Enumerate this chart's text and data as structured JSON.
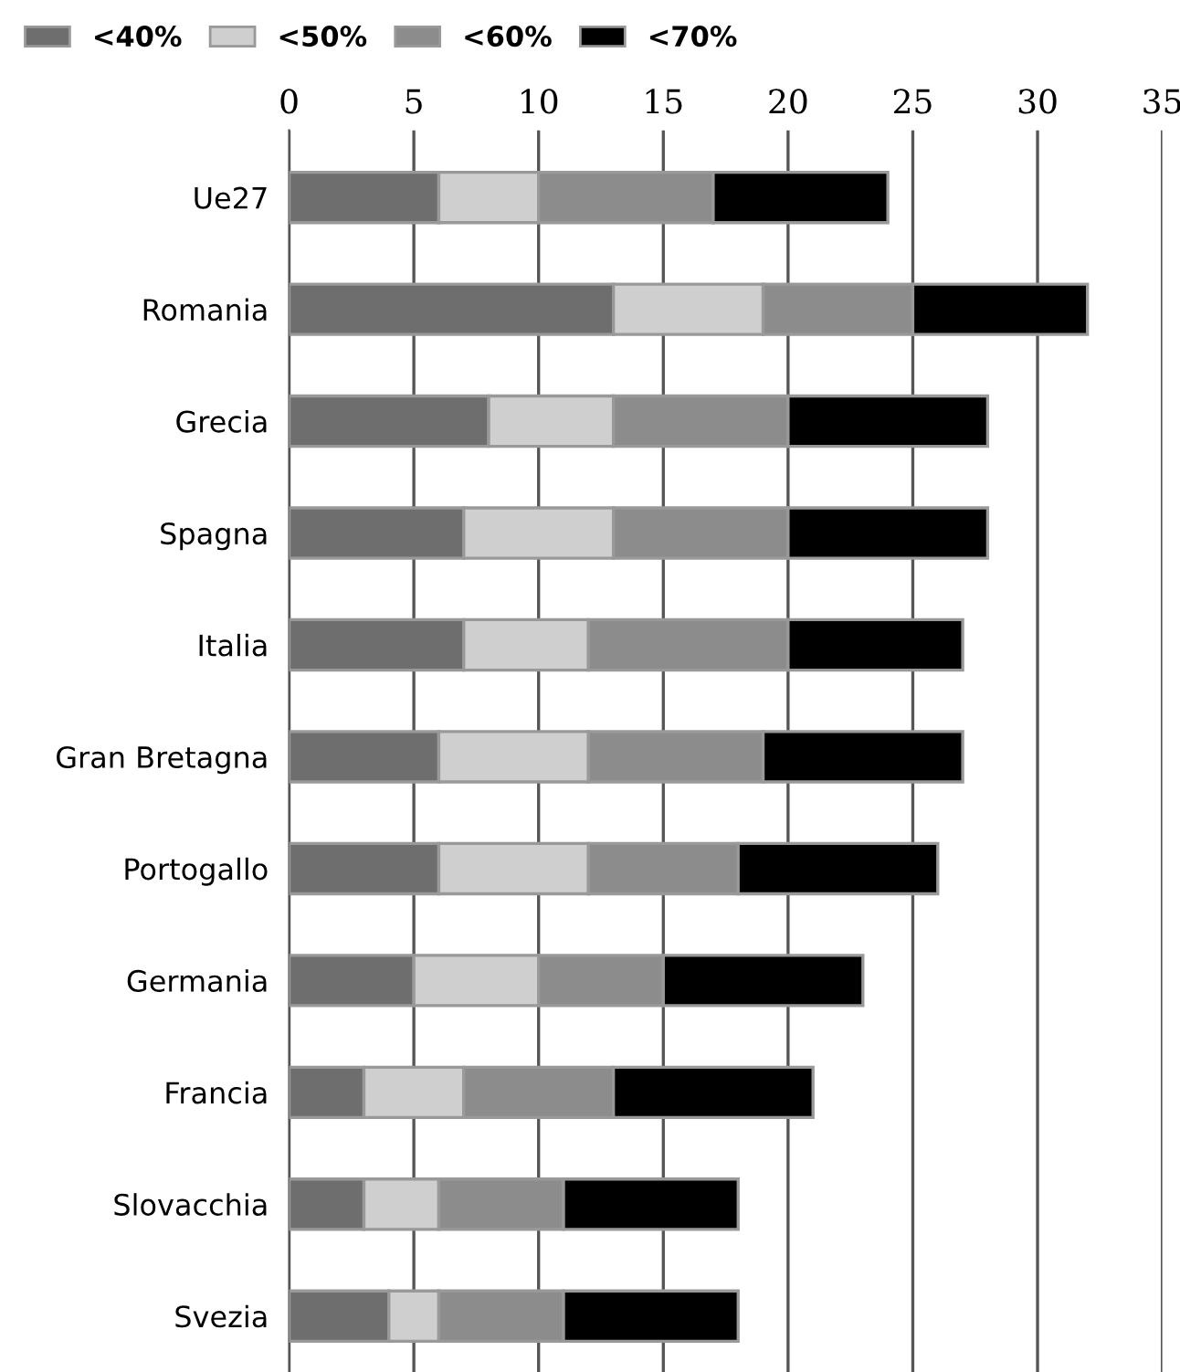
{
  "chart_data": {
    "type": "bar",
    "orientation": "horizontal",
    "stacked": true,
    "categories": [
      "Ue27",
      "Romania",
      "Grecia",
      "Spagna",
      "Italia",
      "Gran Bretagna",
      "Portogallo",
      "Germania",
      "Francia",
      "Slovacchia",
      "Svezia"
    ],
    "series": [
      {
        "name": "<40%",
        "color": "#6e6e6e",
        "values": [
          6,
          13,
          8,
          7,
          7,
          6,
          6,
          5,
          3,
          3,
          4
        ]
      },
      {
        "name": "<50%",
        "color": "#cfcfcf",
        "values": [
          4,
          6,
          5,
          6,
          5,
          6,
          6,
          5,
          4,
          3,
          2
        ]
      },
      {
        "name": "<60%",
        "color": "#8c8c8c",
        "values": [
          7,
          6,
          7,
          7,
          8,
          7,
          6,
          5,
          6,
          5,
          5
        ]
      },
      {
        "name": "<70%",
        "color": "#000000",
        "values": [
          7,
          7,
          8,
          8,
          7,
          8,
          8,
          8,
          8,
          7,
          7
        ]
      }
    ],
    "xlim": [
      0,
      35
    ],
    "xticks": [
      0,
      5,
      10,
      15,
      20,
      25,
      30,
      35
    ],
    "grid": "x",
    "legend": "top left"
  }
}
